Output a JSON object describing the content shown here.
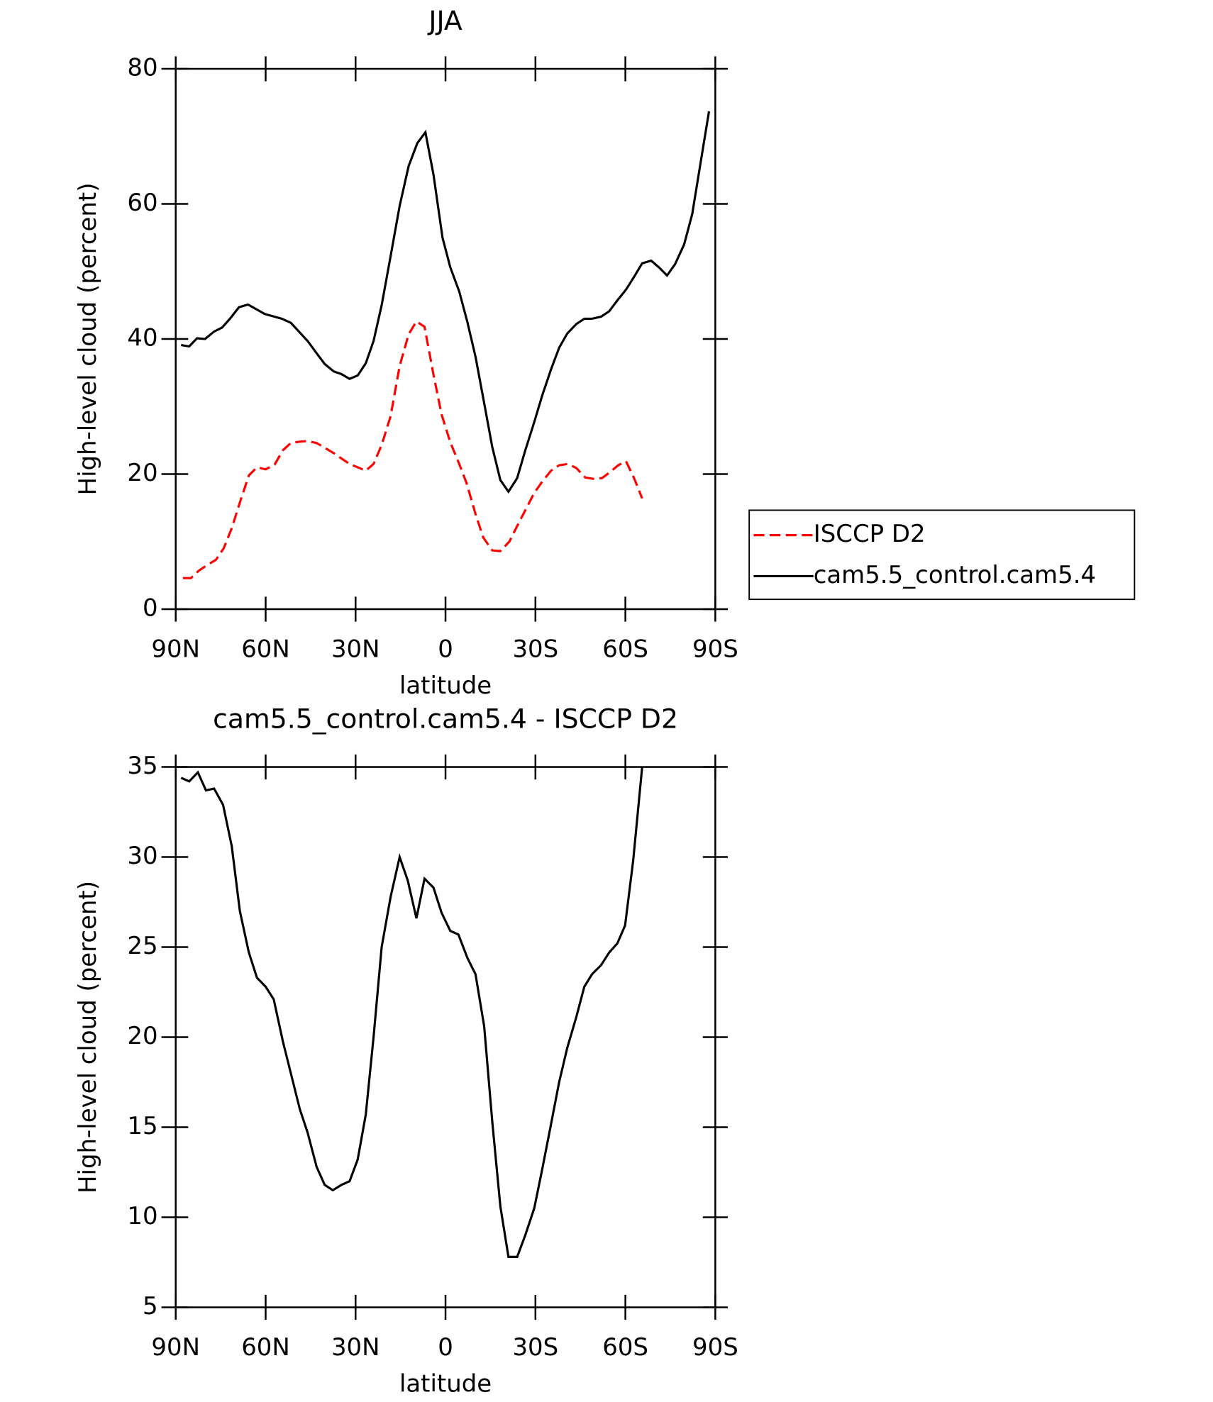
{
  "chart_data": [
    {
      "type": "line",
      "title": "JJA",
      "x_label": "latitude",
      "y_label": "High-level cloud (percent)",
      "xlim": [
        90,
        -90
      ],
      "ylim": [
        0,
        80
      ],
      "xticks": [
        {
          "value": 90,
          "label": "90N"
        },
        {
          "value": 60,
          "label": "60N"
        },
        {
          "value": 30,
          "label": "30N"
        },
        0,
        {
          "value": -30,
          "label": "30S"
        },
        {
          "value": -60,
          "label": "60S"
        },
        {
          "value": -90,
          "label": "90S"
        }
      ],
      "yticks": [
        0,
        20,
        40,
        60,
        80
      ],
      "legend": "right",
      "series": [
        {
          "name": "ISCCP D2",
          "color": "#ff0000",
          "dashed": true,
          "x": [
            87.6,
            84.9,
            82.3,
            79.6,
            76.6,
            74.0,
            71.3,
            68.3,
            65.6,
            62.9,
            60.0,
            57.0,
            54.3,
            51.6,
            48.6,
            46.0,
            43.0,
            40.3,
            37.3,
            34.7,
            32.0,
            29.3,
            26.6,
            24.0,
            21.3,
            18.3,
            15.3,
            12.3,
            9.7,
            7.0,
            4.0,
            1.3,
            -1.6,
            -4.3,
            -7.0,
            -10.0,
            -12.6,
            -15.6,
            -18.3,
            -21.3,
            -23.9,
            -26.9,
            -29.6,
            -32.3,
            -35.2,
            -37.9,
            -40.9,
            -43.6,
            -46.6,
            -49.2,
            -52.2,
            -54.9,
            -57.6,
            -60.2,
            -62.9,
            -65.6
          ],
          "values": [
            4.6,
            4.6,
            5.7,
            6.5,
            7.3,
            9.0,
            12.0,
            16.2,
            19.8,
            21.0,
            20.7,
            21.4,
            23.5,
            24.6,
            24.8,
            24.9,
            24.6,
            23.9,
            23.1,
            22.3,
            21.5,
            21.0,
            20.5,
            21.5,
            24.3,
            28.6,
            36.0,
            40.7,
            42.6,
            41.8,
            34.7,
            28.8,
            24.7,
            21.8,
            18.7,
            14.1,
            10.6,
            8.7,
            8.6,
            10.0,
            12.3,
            14.9,
            17.2,
            18.9,
            20.5,
            21.3,
            21.5,
            20.9,
            19.5,
            19.3,
            19.4,
            20.3,
            21.3,
            21.9,
            19.4,
            16.4
          ]
        },
        {
          "name": "cam5.5_control.cam5.4",
          "color": "#000000",
          "dashed": false,
          "x": [
            88.2,
            85.5,
            82.9,
            80.2,
            77.2,
            74.5,
            71.9,
            68.9,
            65.9,
            60.3,
            54.6,
            51.6,
            46.0,
            43.0,
            40.3,
            37.3,
            34.7,
            32.0,
            29.3,
            26.6,
            24.0,
            21.3,
            18.3,
            15.3,
            12.3,
            9.4,
            6.7,
            4.0,
            1.0,
            -1.6,
            -4.6,
            -7.3,
            -10.0,
            -12.9,
            -15.6,
            -18.3,
            -21.0,
            -23.9,
            -26.6,
            -29.6,
            -32.3,
            -35.2,
            -37.9,
            -40.6,
            -43.6,
            -46.3,
            -48.9,
            -51.9,
            -54.6,
            -57.3,
            -60.2,
            -62.9,
            -65.6,
            -68.6,
            -71.2,
            -73.9,
            -76.6,
            -79.6,
            -82.3,
            -85.2,
            -87.9
          ],
          "values": [
            39.1,
            38.9,
            40.1,
            40.0,
            41.1,
            41.7,
            43.0,
            44.7,
            45.1,
            43.7,
            43.0,
            42.4,
            39.7,
            37.9,
            36.3,
            35.2,
            34.8,
            34.1,
            34.6,
            36.4,
            39.7,
            45.0,
            52.3,
            59.7,
            65.6,
            69.0,
            70.6,
            64.3,
            55.0,
            50.6,
            47.0,
            42.5,
            37.4,
            30.5,
            24.0,
            19.1,
            17.4,
            19.4,
            23.5,
            27.7,
            31.7,
            35.5,
            38.7,
            40.8,
            42.2,
            43.0,
            43.0,
            43.3,
            44.1,
            45.7,
            47.3,
            49.2,
            51.2,
            51.6,
            50.6,
            49.4,
            51.1,
            54.0,
            58.5,
            66.4,
            73.7
          ]
        }
      ]
    },
    {
      "type": "line",
      "title": "cam5.5_control.cam5.4 - ISCCP D2",
      "x_label": "latitude",
      "y_label": "High-level cloud (percent)",
      "xlim": [
        90,
        -90
      ],
      "ylim": [
        5,
        35
      ],
      "xticks": [
        {
          "value": 90,
          "label": "90N"
        },
        {
          "value": 60,
          "label": "60N"
        },
        {
          "value": 30,
          "label": "30N"
        },
        0,
        {
          "value": -30,
          "label": "30S"
        },
        {
          "value": -60,
          "label": "60S"
        },
        {
          "value": -90,
          "label": "90S"
        }
      ],
      "yticks": [
        5,
        10,
        15,
        20,
        25,
        30,
        35
      ],
      "series": [
        {
          "color": "#000000",
          "dashed": false,
          "x": [
            88.2,
            85.5,
            82.6,
            79.9,
            77.2,
            74.2,
            71.3,
            68.6,
            65.6,
            62.9,
            60.0,
            57.3,
            54.3,
            51.6,
            48.6,
            46.0,
            43.0,
            40.3,
            37.6,
            34.7,
            32.0,
            29.3,
            26.6,
            24.0,
            21.3,
            18.3,
            15.3,
            12.6,
            9.7,
            7.0,
            4.0,
            1.3,
            -1.6,
            -4.3,
            -7.3,
            -10.0,
            -12.9,
            -15.6,
            -18.3,
            -21.0,
            -23.9,
            -26.6,
            -29.6,
            -32.3,
            -35.0,
            -37.9,
            -40.6,
            -43.6,
            -46.3,
            -48.9,
            -51.9,
            -54.6,
            -57.3,
            -59.9,
            -62.6,
            -65.6
          ],
          "values": [
            34.4,
            34.2,
            34.7,
            33.7,
            33.8,
            32.9,
            30.6,
            27.0,
            24.7,
            23.3,
            22.8,
            22.1,
            19.8,
            18.0,
            16.0,
            14.7,
            12.8,
            11.8,
            11.5,
            11.8,
            12.0,
            13.2,
            15.7,
            20.0,
            25.0,
            27.8,
            30.0,
            28.7,
            26.6,
            28.8,
            28.3,
            26.9,
            25.9,
            25.7,
            24.4,
            23.5,
            20.6,
            15.3,
            10.6,
            7.8,
            7.8,
            9.0,
            10.5,
            12.7,
            15.0,
            17.5,
            19.4,
            21.1,
            22.8,
            23.5,
            24.0,
            24.7,
            25.2,
            26.2,
            29.8,
            35.0
          ]
        }
      ]
    }
  ]
}
